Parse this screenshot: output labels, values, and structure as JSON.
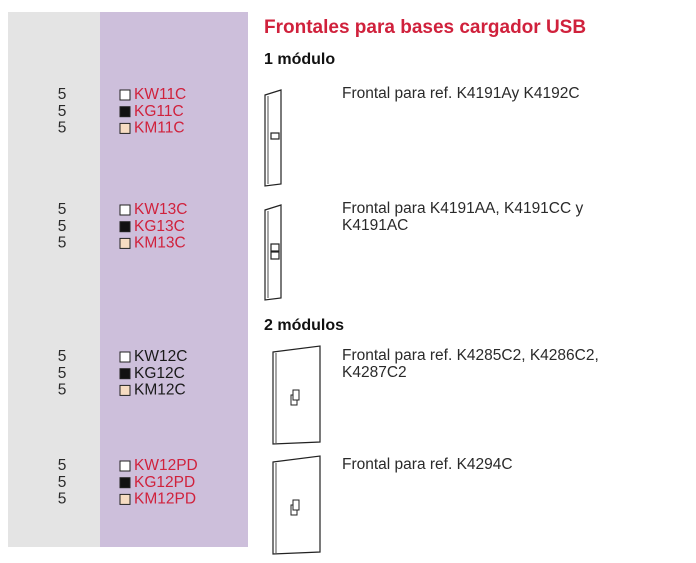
{
  "header": {
    "title": "Frontales para bases cargador USB"
  },
  "sections": [
    {
      "title": "1 módulo",
      "groups": [
        {
          "code_color": "#d0213c",
          "rows": [
            {
              "qty": "5",
              "code": "KW11C"
            },
            {
              "qty": "5",
              "code": "KG11C"
            },
            {
              "qty": "5",
              "code": "KM11C"
            }
          ],
          "description": [
            "Frontal para ref. K4191Ay K4192C"
          ]
        },
        {
          "code_color": "#d0213c",
          "rows": [
            {
              "qty": "5",
              "code": "KW13C"
            },
            {
              "qty": "5",
              "code": "KG13C"
            },
            {
              "qty": "5",
              "code": "KM13C"
            }
          ],
          "description": [
            "Frontal para K4191AA, K4191CC y",
            "K4191AC"
          ]
        }
      ]
    },
    {
      "title": "2 módulos",
      "groups": [
        {
          "code_color": "#1a1a1a",
          "rows": [
            {
              "qty": "5",
              "code": "KW12C"
            },
            {
              "qty": "5",
              "code": "KG12C"
            },
            {
              "qty": "5",
              "code": "KM12C"
            }
          ],
          "description": [
            "Frontal para ref. K4285C2, K4286C2,",
            "K4287C2"
          ]
        },
        {
          "code_color": "#d0213c",
          "rows": [
            {
              "qty": "5",
              "code": "KW12PD"
            },
            {
              "qty": "5",
              "code": "KG12PD"
            },
            {
              "qty": "5",
              "code": "KM12PD"
            }
          ],
          "description": [
            "Frontal para ref. K4294C"
          ]
        }
      ]
    }
  ]
}
